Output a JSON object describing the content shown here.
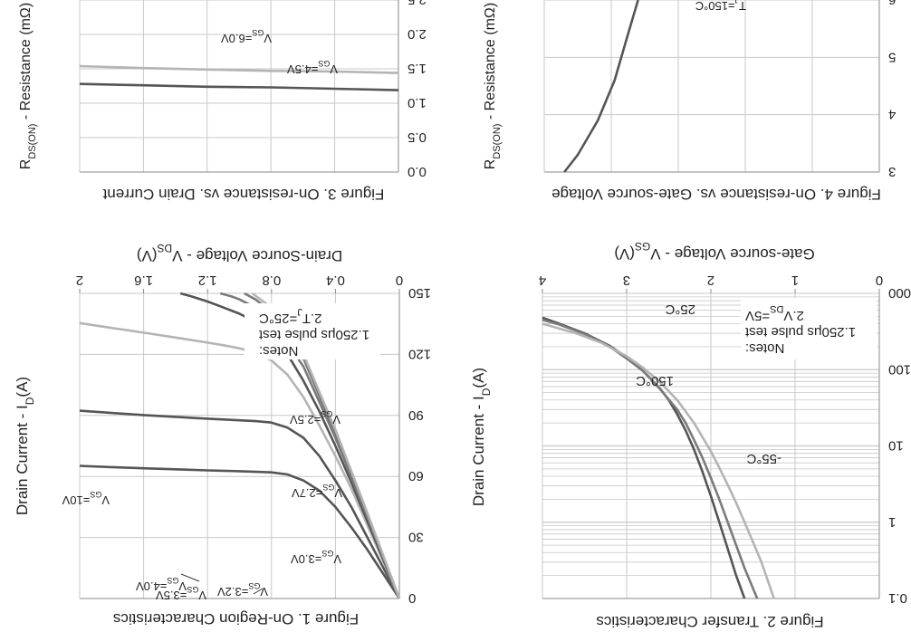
{
  "colors": {
    "dark": "#555555",
    "mid": "#7a7a7a",
    "light": "#b4b4b4",
    "grid": "#c8c8c8"
  },
  "chart_data": [
    {
      "id": "fig1",
      "type": "line",
      "title": "Figure 1. On-Region Characteristics",
      "xlabel": "Drain-Source Voltage  -  V",
      "xlabel_sub": "DS",
      "xlabel_unit": "(V)",
      "ylabel": "Drain Current  -  I",
      "ylabel_sub": "D",
      "ylabel_unit": "(A)",
      "xlim": [
        0,
        2
      ],
      "ylim": [
        0,
        150
      ],
      "xticks": [
        0,
        0.4,
        0.8,
        1.2,
        1.6,
        2
      ],
      "xtick_labels": [
        "0",
        "0.4",
        "0.8",
        "1.2",
        "1.6",
        "2"
      ],
      "yticks": [
        0,
        30,
        60,
        90,
        120,
        150
      ],
      "ytick_labels": [
        "0",
        "30",
        "60",
        "90",
        "120",
        "150"
      ],
      "notes": [
        "Notes:",
        "1.250μs pulse test",
        "2.T",
        "J",
        "=25°C"
      ],
      "series": [
        {
          "name": "VGS=2.5V",
          "label": "V",
          "label_sub": "GS",
          "label_val": "=2.5V",
          "color": "dark",
          "x": [
            0,
            0.1,
            0.2,
            0.3,
            0.4,
            0.5,
            0.6,
            0.7,
            0.8,
            1.0,
            1.2,
            1.4,
            1.6,
            1.8,
            2.0
          ],
          "y": [
            0,
            12,
            24,
            35,
            45,
            53,
            58,
            61,
            62,
            62.6,
            63,
            63.5,
            64,
            64.6,
            65.2
          ]
        },
        {
          "name": "VGS=2.7V",
          "label": "V",
          "label_sub": "GS",
          "label_val": "=2.7V",
          "color": "dark",
          "x": [
            0,
            0.1,
            0.2,
            0.3,
            0.4,
            0.5,
            0.6,
            0.7,
            0.8,
            0.9,
            1.0,
            1.2,
            1.4,
            1.6,
            1.8,
            2.0
          ],
          "y": [
            0,
            15,
            30,
            45,
            58,
            70,
            79,
            84,
            86.5,
            87.2,
            87.6,
            88.4,
            89.3,
            90.2,
            91.2,
            92.3
          ]
        },
        {
          "name": "VGS=3.0V",
          "label": "V",
          "label_sub": "GS",
          "label_val": "=3.0V",
          "color": "light",
          "x": [
            0,
            0.1,
            0.2,
            0.3,
            0.4,
            0.5,
            0.6,
            0.7,
            0.8,
            0.9,
            1.0,
            1.1,
            1.2,
            1.4,
            1.6,
            1.8,
            2.0
          ],
          "y": [
            0,
            18,
            36,
            54,
            70,
            85,
            99,
            110,
            117,
            121,
            123,
            124.5,
            125.8,
            128.3,
            130.7,
            133,
            135.4
          ]
        },
        {
          "name": "VGS=3.2V",
          "label": "V",
          "label_sub": "GS",
          "label_val": "=3.2V",
          "color": "dark",
          "x": [
            0,
            0.1,
            0.2,
            0.3,
            0.4,
            0.5,
            0.6,
            0.7,
            0.8,
            0.9,
            1.0,
            1.1,
            1.2,
            1.3,
            1.37
          ],
          "y": [
            0,
            19,
            38,
            57,
            75,
            92,
            107,
            120,
            130,
            136,
            140,
            143,
            146,
            148.5,
            150
          ]
        },
        {
          "name": "VGS=3.5V",
          "label": "V",
          "label_sub": "GS",
          "label_val": "=3.5V",
          "color": "mid",
          "x": [
            0,
            0.2,
            0.4,
            0.6,
            0.8,
            0.9,
            1.0,
            1.05,
            1.12
          ],
          "y": [
            0,
            40,
            79,
            114,
            137,
            143,
            147,
            148.5,
            150
          ]
        },
        {
          "name": "VGS=4.0V",
          "label": "V",
          "label_sub": "GS",
          "label_val": "=4.0V",
          "color": "mid",
          "x": [
            0,
            0.2,
            0.4,
            0.6,
            0.8,
            0.9,
            0.97
          ],
          "y": [
            0,
            41,
            81,
            118,
            141,
            147,
            150
          ]
        },
        {
          "name": "VGS=10V",
          "label": "V",
          "label_sub": "GS",
          "label_val": "=10V",
          "color": "light",
          "x": [
            0,
            0.2,
            0.4,
            0.6,
            0.8,
            0.92
          ],
          "y": [
            0,
            42,
            83,
            120,
            143,
            150
          ]
        }
      ]
    },
    {
      "id": "fig2",
      "type": "line",
      "title": "Figure 2. Transfer Characteristics",
      "xlabel": "Gate-source Voltage - V",
      "xlabel_sub": "GS",
      "xlabel_unit": "(V)",
      "ylabel": "Drain Current  -  I",
      "ylabel_sub": "D",
      "ylabel_unit": "(A)",
      "xlim": [
        0,
        4
      ],
      "yscale": "log",
      "ylim": [
        0.1,
        1000
      ],
      "xticks": [
        0,
        1,
        2,
        3,
        4
      ],
      "xtick_labels": [
        "0",
        "1",
        "2",
        "3",
        "4"
      ],
      "yticks": [
        0.1,
        1,
        10,
        100,
        1000
      ],
      "ytick_labels": [
        "0.1",
        "1",
        "10",
        "100",
        "1000"
      ],
      "notes": [
        "Notes:",
        "1.250μs pulse test",
        "2.V",
        "DS",
        "=5V"
      ],
      "series": [
        {
          "name": "-55°C",
          "label": "-55°C",
          "color": "dark",
          "x": [
            1.6,
            1.7,
            1.8,
            1.9,
            2.0,
            2.1,
            2.2,
            2.3,
            2.4,
            2.5,
            2.6,
            2.8,
            3.0,
            3.2,
            3.5,
            3.8,
            4.0
          ],
          "y": [
            0.1,
            0.2,
            0.45,
            1.0,
            2.2,
            4.6,
            9,
            16,
            26,
            40,
            56,
            95,
            145,
            205,
            300,
            400,
            480
          ]
        },
        {
          "name": "25°C",
          "label": "25°C",
          "color": "mid",
          "x": [
            1.45,
            1.6,
            1.7,
            1.8,
            1.9,
            2.0,
            2.1,
            2.2,
            2.3,
            2.4,
            2.6,
            2.8,
            3.0,
            3.2,
            3.5,
            3.8,
            4.0
          ],
          "y": [
            0.1,
            0.25,
            0.5,
            1.0,
            2.0,
            3.8,
            7,
            12,
            20,
            30,
            55,
            95,
            140,
            200,
            295,
            390,
            450
          ]
        },
        {
          "name": "150°C",
          "label": "150°C",
          "color": "light",
          "x": [
            1.25,
            1.4,
            1.5,
            1.6,
            1.7,
            1.8,
            1.9,
            2.0,
            2.2,
            2.4,
            2.6,
            2.8,
            3.0,
            3.3,
            3.6,
            4.0
          ],
          "y": [
            0.1,
            0.3,
            0.55,
            1.0,
            1.8,
            3.1,
            5.2,
            8.5,
            20,
            40,
            68,
            105,
            150,
            225,
            300,
            400
          ]
        }
      ]
    },
    {
      "id": "fig3",
      "type": "line",
      "title": "Figure 3. On-resistance vs. Drain Current",
      "ylabel": "R",
      "ylabel_sub": "DS(ON)",
      "ylabel_tail": " - Resistance (mΩ)",
      "xlim": [
        0,
        1
      ],
      "ylim": [
        0,
        2.5
      ],
      "yticks": [
        0,
        0.5,
        1.0,
        1.5,
        2.0,
        2.5
      ],
      "ytick_labels": [
        "0.0",
        "0.5",
        "1.0",
        "1.5",
        "2.0",
        "2.5"
      ],
      "series": [
        {
          "name": "VGS=4.5V",
          "label": "V",
          "label_sub": "GS",
          "label_val": "=4.5V",
          "color": "light",
          "x": [
            0,
            0.2,
            0.4,
            0.6,
            0.8,
            1.0
          ],
          "y": [
            1.44,
            1.46,
            1.47,
            1.49,
            1.51,
            1.54
          ]
        },
        {
          "name": "VGS=6.0V",
          "label": "V",
          "label_sub": "GS",
          "label_val": "=6.0V",
          "color": "dark",
          "x": [
            0,
            0.2,
            0.4,
            0.6,
            0.8,
            1.0
          ],
          "y": [
            1.19,
            1.21,
            1.23,
            1.24,
            1.26,
            1.28
          ]
        }
      ]
    },
    {
      "id": "fig4",
      "type": "line",
      "title": "Figure 4. On-resistance vs. Gate-source Voltage",
      "ylabel": "R",
      "ylabel_sub": "DS(ON)",
      "ylabel_tail": " - Resistance (mΩ)",
      "xlim": [
        0,
        1
      ],
      "ylim": [
        3,
        6
      ],
      "yticks": [
        3,
        4,
        5,
        6
      ],
      "ytick_labels": [
        "3",
        "4",
        "5",
        "6"
      ],
      "series": [
        {
          "name": "TJ=150°C",
          "label": "T",
          "label_sub": "J",
          "label_val": "=150°C",
          "color": "dark",
          "x": [
            0.72,
            0.755,
            0.79,
            0.84,
            0.9,
            0.94
          ],
          "y": [
            6.0,
            5.3,
            4.6,
            3.9,
            3.3,
            2.95
          ]
        }
      ]
    }
  ]
}
